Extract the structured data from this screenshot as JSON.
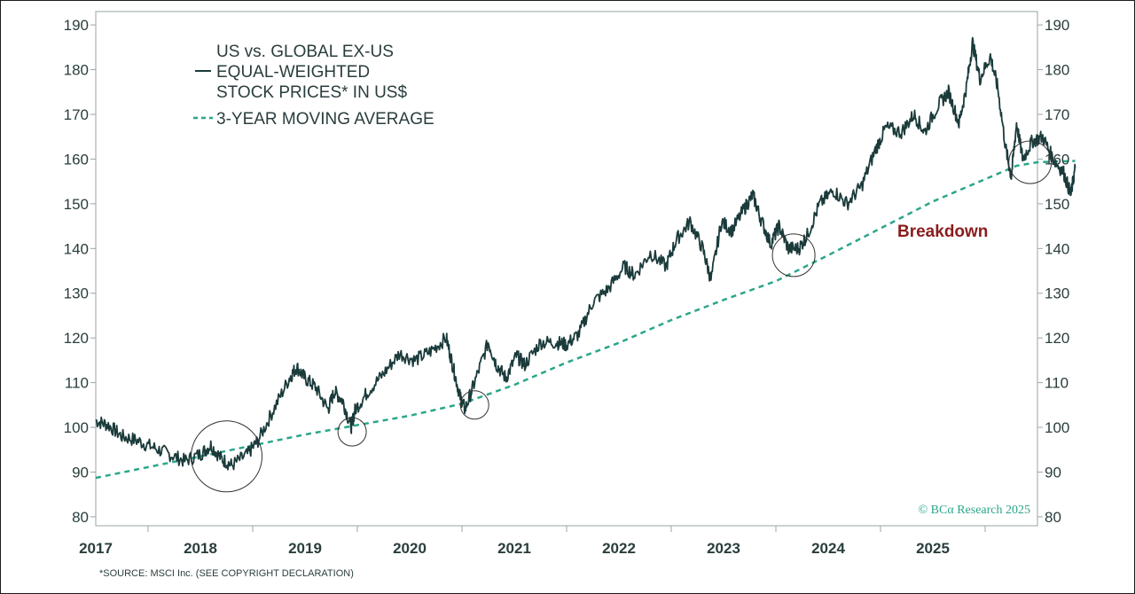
{
  "chart_data": {
    "type": "line",
    "title_lines": [
      "US vs. GLOBAL EX-US",
      "EQUAL-WEIGHTED",
      "STOCK PRICES* IN US$"
    ],
    "legend": {
      "price_series": "US vs. GLOBAL EX-US EQUAL-WEIGHTED STOCK PRICES* IN US$",
      "ma_series": "3-YEAR MOVING AVERAGE"
    },
    "annotation": "Breakdown",
    "credit": "© BCα Research 2025",
    "source_note": "*SOURCE: MSCI Inc. (SEE COPYRIGHT DECLARATION)",
    "ylim": [
      78,
      193
    ],
    "yticks": [
      80,
      90,
      100,
      110,
      120,
      130,
      140,
      150,
      160,
      170,
      180,
      190
    ],
    "ytick_labels": [
      "80",
      "90",
      "100",
      "110",
      "120",
      "130",
      "140",
      "150",
      "160",
      "170",
      "180",
      "190"
    ],
    "y_axes": "left and right",
    "xlim": [
      2016.5,
      2025.5
    ],
    "xtick_labels": [
      "2017",
      "2018",
      "2019",
      "2020",
      "2021",
      "2022",
      "2023",
      "2024",
      "2025"
    ],
    "grid": false,
    "legend_placement": "top-left",
    "colors": {
      "price": "#1b3b3b",
      "ma": "#2aa68a",
      "annotation": "#8b1c1c",
      "axis_text": "#2a3d3d"
    },
    "series": [
      {
        "name": "US vs. GLOBAL EX-US EQUAL-WEIGHTED STOCK PRICES* IN US$",
        "style": "solid",
        "points": [
          [
            2016.5,
            101.5
          ],
          [
            2016.62,
            100.5
          ],
          [
            2016.75,
            98
          ],
          [
            2016.9,
            97
          ],
          [
            2017.05,
            95.5
          ],
          [
            2017.2,
            94
          ],
          [
            2017.35,
            92.5
          ],
          [
            2017.5,
            94
          ],
          [
            2017.6,
            96
          ],
          [
            2017.7,
            93
          ],
          [
            2017.8,
            91.5
          ],
          [
            2017.95,
            94
          ],
          [
            2018.05,
            97
          ],
          [
            2018.2,
            104
          ],
          [
            2018.35,
            111
          ],
          [
            2018.42,
            113.5
          ],
          [
            2018.5,
            111
          ],
          [
            2018.6,
            109
          ],
          [
            2018.72,
            104
          ],
          [
            2018.78,
            108
          ],
          [
            2018.86,
            106
          ],
          [
            2018.94,
            100
          ],
          [
            2018.98,
            104
          ],
          [
            2019.1,
            108
          ],
          [
            2019.25,
            112
          ],
          [
            2019.4,
            116.5
          ],
          [
            2019.55,
            115
          ],
          [
            2019.7,
            117
          ],
          [
            2019.85,
            120
          ],
          [
            2019.92,
            113
          ],
          [
            2019.98,
            107
          ],
          [
            2020.03,
            104
          ],
          [
            2020.12,
            110
          ],
          [
            2020.25,
            119
          ],
          [
            2020.33,
            114
          ],
          [
            2020.42,
            111
          ],
          [
            2020.52,
            116
          ],
          [
            2020.6,
            114
          ],
          [
            2020.75,
            119
          ],
          [
            2020.9,
            119
          ],
          [
            2021.0,
            118.5
          ],
          [
            2021.12,
            121
          ],
          [
            2021.25,
            128
          ],
          [
            2021.4,
            131
          ],
          [
            2021.55,
            136
          ],
          [
            2021.65,
            134
          ],
          [
            2021.8,
            139
          ],
          [
            2021.95,
            136
          ],
          [
            2022.05,
            142
          ],
          [
            2022.18,
            146
          ],
          [
            2022.3,
            140
          ],
          [
            2022.38,
            133
          ],
          [
            2022.48,
            146
          ],
          [
            2022.58,
            144
          ],
          [
            2022.7,
            149
          ],
          [
            2022.78,
            152
          ],
          [
            2022.85,
            147
          ],
          [
            2022.95,
            141
          ],
          [
            2023.03,
            145
          ],
          [
            2023.12,
            140
          ],
          [
            2023.22,
            140
          ],
          [
            2023.3,
            143
          ],
          [
            2023.42,
            150
          ],
          [
            2023.55,
            153
          ],
          [
            2023.68,
            150
          ],
          [
            2023.82,
            154
          ],
          [
            2023.95,
            162
          ],
          [
            2024.05,
            167
          ],
          [
            2024.2,
            166
          ],
          [
            2024.32,
            170
          ],
          [
            2024.42,
            166
          ],
          [
            2024.55,
            172
          ],
          [
            2024.65,
            175
          ],
          [
            2024.75,
            168
          ],
          [
            2024.82,
            176
          ],
          [
            2024.88,
            186
          ],
          [
            2024.95,
            178
          ],
          [
            2025.05,
            183
          ],
          [
            2025.12,
            176
          ],
          [
            2025.2,
            162
          ],
          [
            2025.25,
            156
          ],
          [
            2025.3,
            168
          ],
          [
            2025.36,
            160
          ],
          [
            2025.45,
            164
          ],
          [
            2025.55,
            165
          ],
          [
            2025.65,
            160
          ],
          [
            2025.75,
            157
          ],
          [
            2025.82,
            152
          ],
          [
            2025.86,
            158
          ]
        ]
      },
      {
        "name": "3-YEAR MOVING AVERAGE",
        "style": "dashed",
        "points": [
          [
            2016.5,
            88.7
          ],
          [
            2017.5,
            93.5
          ],
          [
            2018.5,
            98.4
          ],
          [
            2019.5,
            102.6
          ],
          [
            2020.0,
            105.3
          ],
          [
            2020.5,
            109.5
          ],
          [
            2021.0,
            114.5
          ],
          [
            2021.5,
            118.9
          ],
          [
            2022.0,
            124
          ],
          [
            2022.5,
            128.5
          ],
          [
            2023.0,
            132.7
          ],
          [
            2023.5,
            138.5
          ],
          [
            2024.0,
            144.5
          ],
          [
            2024.5,
            150.5
          ],
          [
            2025.0,
            155.5
          ],
          [
            2025.3,
            158.5
          ],
          [
            2025.5,
            159.3
          ],
          [
            2025.86,
            159.6
          ]
        ]
      }
    ],
    "highlights": [
      {
        "x": 2017.75,
        "y": 93.5,
        "size": "large"
      },
      {
        "x": 2018.95,
        "y": 99,
        "size": "small"
      },
      {
        "x": 2020.12,
        "y": 105,
        "size": "small"
      },
      {
        "x": 2023.17,
        "y": 138.5,
        "size": "medium"
      },
      {
        "x": 2025.43,
        "y": 159.3,
        "size": "medium"
      }
    ]
  }
}
